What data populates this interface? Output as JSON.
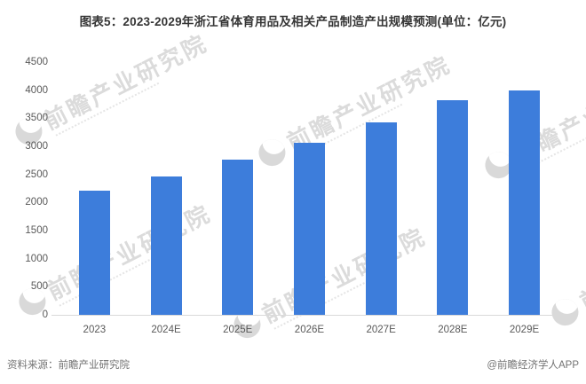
{
  "chart_data": {
    "type": "bar",
    "title": "图表5：2023-2029年浙江省体育用品及相关产品制造产出规模预测(单位：亿元)",
    "categories": [
      "2023",
      "2024E",
      "2025E",
      "2026E",
      "2027E",
      "2028E",
      "2029E"
    ],
    "values": [
      2210,
      2460,
      2760,
      3070,
      3420,
      3820,
      4000
    ],
    "xlabel": "",
    "ylabel": "",
    "unit": "亿元",
    "ylim": [
      0,
      4500
    ],
    "yticks": [
      0,
      500,
      1000,
      1500,
      2000,
      2500,
      3000,
      3500,
      4000,
      4500
    ],
    "grid": false,
    "legend": false,
    "bar_color": "#3D7DDB"
  },
  "watermark": {
    "text": "前瞻产业研究院"
  },
  "footer": {
    "source": "资料来源：前瞻产业研究院",
    "credit": "@前瞻经济学人APP"
  },
  "colors": {
    "bar": "#3D7DDB",
    "axis_line": "#D9D9D9",
    "tick_label": "#595959",
    "title": "#363636",
    "footer": "#737373",
    "watermark": "#BDBDBD"
  }
}
